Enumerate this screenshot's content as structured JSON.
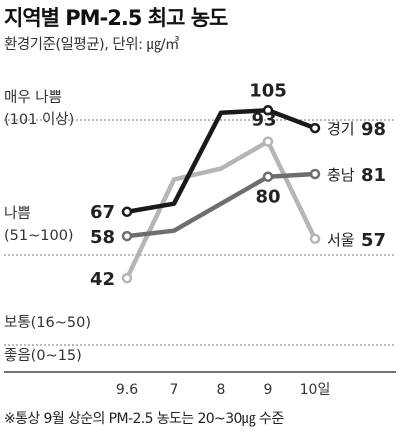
{
  "title": "지역별 PM-2.5 최고 농도",
  "subtitle": "환경기준(일평균), 단위: ㎍/㎥",
  "note": "※통상 9월 상순의 PM-2.5 농도는 20~30㎍ 수준",
  "chart_data": {
    "type": "line",
    "categories": [
      "9.6",
      "7",
      "8",
      "9",
      "10일"
    ],
    "ylim": [
      0,
      115
    ],
    "bands": [
      {
        "label": "매우 나쁨",
        "range": "(101 이상)",
        "min": 101
      },
      {
        "label": "나쁨",
        "range": "(51~100)",
        "min": 51
      },
      {
        "label": "보통(16~50)",
        "range": "",
        "min": 16
      },
      {
        "label": "좋음(0~15)",
        "range": "",
        "min": 0
      }
    ],
    "series": [
      {
        "name": "경기",
        "values": [
          67,
          70,
          104,
          105,
          98
        ],
        "color": "#1a1a1a",
        "labels": {
          "0": "67",
          "3": "105",
          "4": "98"
        }
      },
      {
        "name": "충남",
        "values": [
          58,
          60,
          70,
          80,
          81
        ],
        "color": "#6e6e6e",
        "labels": {
          "0": "58",
          "3": "80",
          "4": "81"
        }
      },
      {
        "name": "서울",
        "values": [
          42,
          79,
          83,
          93,
          57
        ],
        "color": "#b5b5b5",
        "labels": {
          "0": "42",
          "3": "93",
          "4": "57"
        }
      }
    ]
  }
}
